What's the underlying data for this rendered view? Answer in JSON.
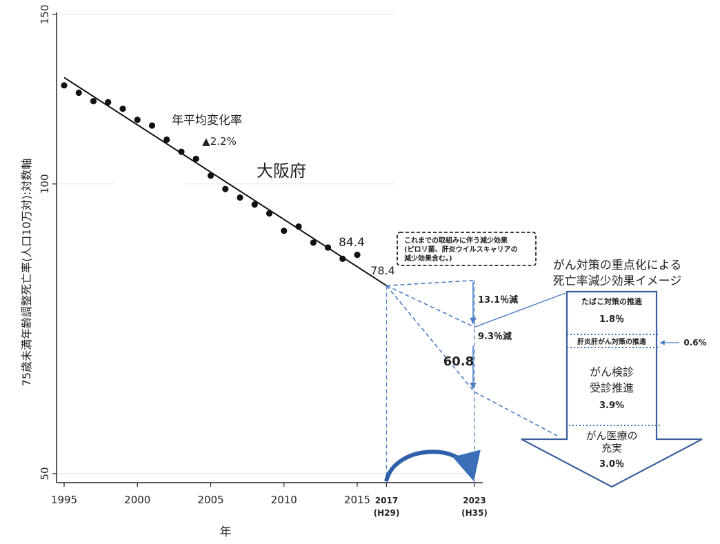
{
  "chart_data": {
    "type": "line",
    "ylabel": "75歳未満年齢調整死亡率(人口10万対):対数軸",
    "xlabel": "年",
    "yscale": "log",
    "ylim": [
      50,
      150
    ],
    "xlim": [
      1995,
      2023
    ],
    "yticks": [
      50,
      100,
      150
    ],
    "xticks": [
      {
        "value": 1995,
        "label": "1995"
      },
      {
        "value": 2000,
        "label": "2000"
      },
      {
        "value": 2005,
        "label": "2005"
      },
      {
        "value": 2010,
        "label": "2010"
      },
      {
        "value": 2015,
        "label": "2015"
      },
      {
        "value": 2017,
        "label": "2017",
        "sub": "(H29)"
      },
      {
        "value": 2023,
        "label": "2023",
        "sub": "(H35)"
      }
    ],
    "points_x": [
      1995,
      1996,
      1997,
      1998,
      1999,
      2000,
      2001,
      2002,
      2003,
      2004,
      2005,
      2006,
      2007,
      2008,
      2009,
      2010,
      2011,
      2012,
      2013,
      2014,
      2015
    ],
    "points_y": [
      126.6,
      124.4,
      121.9,
      121.6,
      119.7,
      116.6,
      115.0,
      111.2,
      108.0,
      106.2,
      102.0,
      98.8,
      96.8,
      95.2,
      93.2,
      89.4,
      90.3,
      86.9,
      85.9,
      83.6,
      84.4
    ],
    "trend": {
      "x": [
        1995,
        2017
      ],
      "y": [
        129.0,
        78.4
      ]
    },
    "annotations": {
      "rate_line1": "年平均変化率",
      "rate_line2": "▲2.2%",
      "region": "大阪府",
      "last_value": "84.4",
      "start_value": "78.4",
      "target_value": "60.8",
      "red1": "13.1％減",
      "red2": "9.3％減"
    },
    "projection": {
      "x0": 2017,
      "y0": 78.4,
      "trend_2023": 71.0,
      "effect1_2023": 68.1,
      "target_2023": 60.8,
      "upper_2023": 79.4
    },
    "box_note": [
      "これまでの取組みに伴う減少効果",
      "(ピロリ菌、肝炎ウイルスキャリアの",
      "減少効果含む。)"
    ],
    "arrow_title": [
      "がん対策の重点化による",
      "死亡率減少効果イメージ"
    ],
    "segments": [
      {
        "label": "たばこ対策の推進",
        "value": "1.8％"
      },
      {
        "label": "肝炎肝がん対策の推進",
        "value": "0.6%"
      },
      {
        "label_lines": [
          "がん検診",
          "受診推進"
        ],
        "value": "3.9%"
      },
      {
        "label_lines": [
          "がん医療の",
          "充実"
        ],
        "value": "3.0％"
      }
    ]
  }
}
